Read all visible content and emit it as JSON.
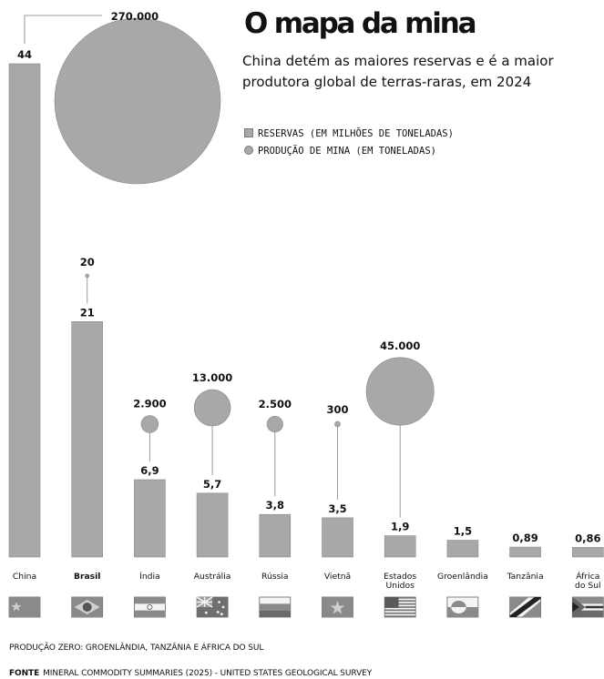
{
  "title": "O mapa da mina",
  "subtitle": "China detém as maiores reservas e é a maior produtora global de terras-raras, em 2024",
  "legend": {
    "reserves": "RESERVAS (EM MILHÕES DE TONELADAS)",
    "production": "PRODUÇÃO DE MINA (EM TONELADAS)"
  },
  "notes": {
    "zero_production": "PRODUÇÃO ZERO: GROENLÂNDIA, TANZÂNIA E ÁFRICA DO SUL",
    "source_label": "FONTE",
    "source_text": "MINERAL COMMODITY SUMMARIES (2025) - UNITED STATES GEOLOGICAL SURVEY"
  },
  "colors": {
    "bar": "#a8a8a8",
    "bar_edge": "#8a8a8a",
    "line": "#9a9a9a",
    "text": "#111111"
  },
  "chart_data": {
    "type": "bar",
    "categories": [
      "China",
      "Brasil",
      "Índia",
      "Austrália",
      "Rússia",
      "Vietnã",
      "Estados Unidos",
      "Groenlândia",
      "Tanzânia",
      "África do Sul"
    ],
    "category_lines": [
      [
        "China"
      ],
      [
        "Brasil"
      ],
      [
        "Índia"
      ],
      [
        "Austrália"
      ],
      [
        "Rússia"
      ],
      [
        "Vietnã"
      ],
      [
        "Estados",
        "Unidos"
      ],
      [
        "Groenlândia"
      ],
      [
        "Tanzânia"
      ],
      [
        "África",
        "do Sul"
      ]
    ],
    "highlight": "Brasil",
    "flags": [
      "china-flag",
      "brazil-flag",
      "india-flag",
      "australia-flag",
      "russia-flag",
      "vietnam-flag",
      "usa-flag",
      "greenland-flag",
      "tanzania-flag",
      "south-africa-flag"
    ],
    "series": [
      {
        "name": "RESERVAS (EM MILHÕES DE TONELADAS)",
        "type": "bar",
        "values": [
          44,
          21,
          6.9,
          5.7,
          3.8,
          3.5,
          1.9,
          1.5,
          0.89,
          0.86
        ],
        "labels": [
          "44",
          "21",
          "6,9",
          "5,7",
          "3,8",
          "3,5",
          "1,9",
          "1,5",
          "0,89",
          "0,86"
        ]
      },
      {
        "name": "PRODUÇÃO DE MINA (EM TONELADAS)",
        "type": "bubble",
        "values": [
          270000,
          20,
          2900,
          13000,
          2500,
          300,
          45000,
          0,
          0,
          0
        ],
        "labels": [
          "270.000",
          "20",
          "2.900",
          "13.000",
          "2.500",
          "300",
          "45.000",
          "",
          "",
          ""
        ]
      }
    ]
  }
}
